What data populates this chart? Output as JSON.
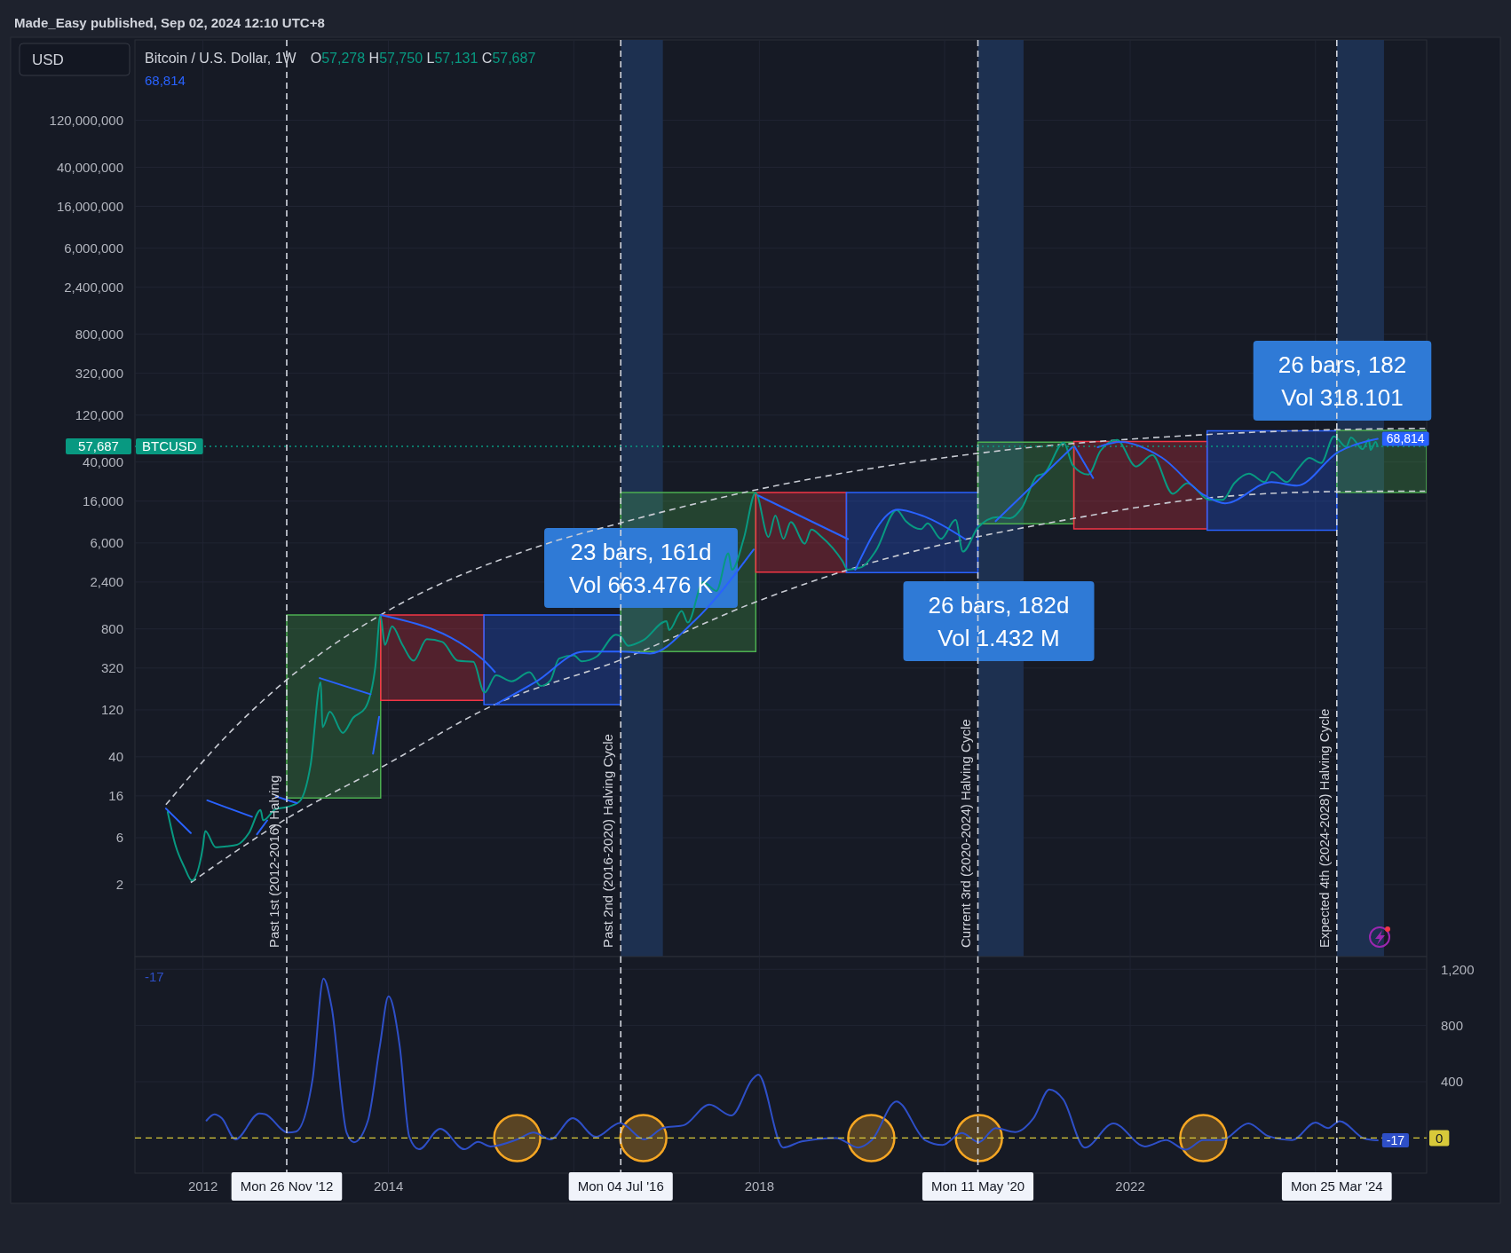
{
  "chart_data": [
    {
      "type": "line",
      "title": "Bitcoin / U.S. Dollar, 1W",
      "subtitle": "O57,278 H57,750 L57,131 C57,687",
      "ylabel": "USD",
      "log": true,
      "grid": true,
      "tick_labels": "y",
      "xlim": [
        "2011-04-08",
        "2025-03-14"
      ],
      "ylim": [
        0.37,
        790000000
      ],
      "xticks": [
        {
          "value": "2012-01-01",
          "label": null
        },
        {
          "value": "2014-01-01",
          "label": null
        },
        {
          "value": "2016-01-01",
          "label": null
        },
        {
          "value": "2018-01-01",
          "label": null
        },
        {
          "value": "2020-01-01",
          "label": null
        },
        {
          "value": "2022-01-01",
          "label": null
        },
        {
          "value": "2024-01-01",
          "label": null
        }
      ],
      "yticks": [
        2,
        6,
        16,
        40,
        120,
        320,
        800,
        {
          "value": 2400,
          "label": "2,400"
        },
        {
          "value": 6000,
          "label": "6,000"
        },
        {
          "value": 16000,
          "label": "16,000"
        },
        {
          "value": 40000,
          "label": "40,000"
        },
        {
          "value": 120000,
          "label": "120,000"
        },
        {
          "value": 320000,
          "label": "320,000"
        },
        {
          "value": 800000,
          "label": "800,000"
        },
        {
          "value": 2400000,
          "label": "2,400,000"
        },
        {
          "value": 6000000,
          "label": "6,000,000"
        },
        {
          "value": 16000000,
          "label": "16,000,000"
        },
        {
          "value": 40000000,
          "label": "40,000,000"
        },
        {
          "value": 120000000,
          "label": "120,000,000"
        }
      ],
      "bands": [
        {
          "axis": "x",
          "from": "2016-07-04",
          "to": "2016-12-17",
          "color": "#1d3050"
        },
        {
          "axis": "x",
          "from": "2020-05-11",
          "to": "2020-11-07",
          "color": "#1d3050"
        },
        {
          "axis": "x",
          "from": "2024-03-25",
          "to": "2024-09-27",
          "color": "#1d3050"
        }
      ],
      "ref_lines": [
        {
          "axis": "x",
          "value": "2012-11-26",
          "label": "Past 1st (2012-2016) Halving",
          "color": "#d1d4dc",
          "line_style": "dashed"
        },
        {
          "axis": "x",
          "value": "2016-07-04",
          "label": "Past 2nd (2016-2020) Halving Cycle",
          "color": "#d1d4dc",
          "line_style": "dashed"
        },
        {
          "axis": "x",
          "value": "2020-05-11",
          "label": "Current 3rd (2020-2024) Halving Cycle",
          "color": "#d1d4dc",
          "line_style": "dashed"
        },
        {
          "axis": "x",
          "value": "2024-03-25",
          "label": "Expected 4th (2024-2028) Halving Cycle",
          "color": "#d1d4dc",
          "line_style": "dashed"
        },
        {
          "axis": "y",
          "value": 57687,
          "label": "57,687",
          "color": "#089981",
          "line_style": "dotted"
        }
      ],
      "series": [
        {
          "color": "#4caf50",
          "x": [
            "2012-11-26",
            "2013-12-01"
          ],
          "values": [
            null,
            null
          ],
          "lower": [
            15.2,
            15.2
          ],
          "upper": [
            1110,
            1110
          ]
        },
        {
          "color": "#f23645",
          "x": [
            "2013-12-01",
            "2015-01-12"
          ],
          "values": [
            null,
            null
          ],
          "lower": [
            150,
            150
          ],
          "upper": [
            1110,
            1110
          ]
        },
        {
          "color": "#2962ff",
          "x": [
            "2015-01-12",
            "2016-07-04"
          ],
          "values": [
            null,
            null
          ],
          "lower": [
            136,
            136
          ],
          "upper": [
            1110,
            1110
          ]
        },
        {
          "color": "#4caf50",
          "x": [
            "2016-07-04",
            "2017-12-18"
          ],
          "values": [
            null,
            null
          ],
          "lower": [
            470,
            470
          ],
          "upper": [
            19600,
            19600
          ]
        },
        {
          "color": "#f23645",
          "x": [
            "2017-12-18",
            "2018-12-10"
          ],
          "values": [
            null,
            null
          ],
          "lower": [
            3020,
            3020
          ],
          "upper": [
            19600,
            19600
          ]
        },
        {
          "color": "#2962ff",
          "x": [
            "2018-12-10",
            "2020-05-11"
          ],
          "values": [
            null,
            null
          ],
          "lower": [
            2990,
            2990
          ],
          "upper": [
            19600,
            19600
          ]
        },
        {
          "color": "#4caf50",
          "x": [
            "2020-05-11",
            "2021-05-24"
          ],
          "values": [
            null,
            null
          ],
          "lower": [
            9400,
            9400
          ],
          "upper": [
            63800,
            63800
          ]
        },
        {
          "color": "#f23645",
          "x": [
            "2021-05-24",
            "2022-10-31"
          ],
          "values": [
            null,
            null
          ],
          "lower": [
            8340,
            8340
          ],
          "upper": [
            64800,
            64800
          ]
        },
        {
          "color": "#2962ff",
          "x": [
            "2022-10-31",
            "2024-03-25"
          ],
          "values": [
            null,
            null
          ],
          "lower": [
            8100,
            8100
          ],
          "upper": [
            83000,
            83000
          ]
        },
        {
          "color": "#4caf50",
          "x": [
            "2024-03-25",
            "2025-03-14"
          ],
          "values": [
            null,
            null
          ],
          "lower": [
            19600,
            19600
          ],
          "upper": [
            84000,
            84000
          ]
        },
        {
          "color": "#c9ccd4",
          "line_style": "dashed",
          "x": [
            "2011-08-08",
            "2012-03-28",
            "2012-11-26",
            "2013-12-01",
            "2015-07-31",
            "2016-07-04",
            "2017-12-10",
            "2020-05-11",
            "2022-10-23",
            "2024-03-28",
            "2025-03-08"
          ],
          "values": [
            13,
            63,
            243,
            1110,
            5380,
            9600,
            20600,
            49000,
            76000,
            85500,
            88000
          ]
        },
        {
          "color": "#c9ccd4",
          "line_style": "dashed",
          "x": [
            "2011-11-14",
            "2012-11-26",
            "2013-12-01",
            "2015-02-24",
            "2016-07-04",
            "2017-12-10",
            "2018-12-16",
            "2021-05-18",
            "2022-10-23",
            "2024-03-28",
            "2025-03-08"
          ],
          "values": [
            2.1,
            9.4,
            31,
            136,
            388,
            1480,
            3200,
            10600,
            17100,
            20000,
            20200
          ]
        },
        {
          "name": "BTCUSD",
          "color": "#089981",
          "x": [
            "2011-08-15",
            "2011-09-15",
            "2011-10-20",
            "2011-11-18",
            "2011-12-31",
            "2012-01-10",
            "2012-02-20",
            "2012-04-01",
            "2012-05-15",
            "2012-06-30",
            "2012-08-15",
            "2012-08-25",
            "2012-10-15",
            "2012-11-26",
            "2013-01-15",
            "2013-02-28",
            "2013-04-09",
            "2013-04-16",
            "2013-05-15",
            "2013-07-05",
            "2013-08-15",
            "2013-10-01",
            "2013-11-10",
            "2013-11-30",
            "2013-12-18",
            "2014-01-15",
            "2014-02-25",
            "2014-04-10",
            "2014-06-01",
            "2014-08-01",
            "2014-10-01",
            "2014-12-01",
            "2015-01-14",
            "2015-03-01",
            "2015-05-01",
            "2015-07-10",
            "2015-08-24",
            "2015-10-01",
            "2015-11-04",
            "2016-01-01",
            "2016-02-01",
            "2016-04-01",
            "2016-06-15",
            "2016-07-04",
            "2016-08-02",
            "2016-10-01",
            "2016-12-31",
            "2017-01-11",
            "2017-03-01",
            "2017-03-25",
            "2017-05-25",
            "2017-07-16",
            "2017-09-01",
            "2017-09-15",
            "2017-11-01",
            "2017-12-17",
            "2018-02-06",
            "2018-03-05",
            "2018-04-06",
            "2018-05-05",
            "2018-06-29",
            "2018-07-25",
            "2018-09-01",
            "2018-11-25",
            "2018-12-15",
            "2019-02-08",
            "2019-04-05",
            "2019-06-26",
            "2019-08-01",
            "2019-09-30",
            "2019-10-26",
            "2019-12-18",
            "2020-02-13",
            "2020-03-13",
            "2020-05-11",
            "2020-07-27",
            "2020-09-15",
            "2020-11-01",
            "2020-12-31",
            "2021-01-27",
            "2021-04-14",
            "2021-05-20",
            "2021-07-20",
            "2021-09-06",
            "2021-11-10",
            "2022-01-24",
            "2022-03-29",
            "2022-06-18",
            "2022-08-14",
            "2022-11-09",
            "2022-12-31",
            "2023-02-16",
            "2023-04-14",
            "2023-06-15",
            "2023-07-13",
            "2023-09-11",
            "2023-10-24",
            "2023-12-08",
            "2024-01-23",
            "2024-03-14",
            "2024-05-01",
            "2024-05-20",
            "2024-07-05",
            "2024-07-29",
            "2024-08-05",
            "2024-08-25",
            "2024-09-02"
          ],
          "values": [
            11,
            5,
            3,
            2.2,
            4.7,
            7,
            4.8,
            4.9,
            5.1,
            6.7,
            11.5,
            9,
            11.8,
            12.3,
            14,
            33,
            230,
            80,
            115,
            70,
            100,
            125,
            330,
            1100,
            550,
            850,
            550,
            380,
            630,
            590,
            380,
            370,
            180,
            270,
            235,
            290,
            210,
            240,
            400,
            430,
            375,
            420,
            700,
            670,
            540,
            615,
            960,
            780,
            1220,
            930,
            2400,
            1950,
            4700,
            3200,
            6700,
            19500,
            6900,
            11400,
            6600,
            9800,
            5900,
            8200,
            7000,
            3900,
            3200,
            3400,
            5000,
            13000,
            10000,
            8300,
            9500,
            6600,
            10300,
            4900,
            8600,
            11000,
            10700,
            13800,
            29000,
            30500,
            63000,
            37000,
            29800,
            52000,
            67000,
            36000,
            47000,
            19000,
            24400,
            16500,
            16500,
            24500,
            30500,
            25000,
            31500,
            25000,
            34000,
            44000,
            39000,
            73000,
            57000,
            71000,
            54000,
            68000,
            53000,
            64000,
            57687
          ]
        },
        {
          "color": "#2962ff",
          "x": [
            "2011-08-08",
            "2011-11-14",
            "2011-12-10",
            "2012-01-18",
            "2012-07-12",
            "2012-07-20",
            "2012-08-01",
            "2012-09-10",
            "2012-09-20",
            "2012-10-15",
            "2013-01-05",
            "2013-01-20",
            "2013-04-05",
            "2013-10-22",
            "2013-10-27",
            "2013-11-01",
            "2013-11-25",
            "2013-11-28",
            "2013-12-01",
            "2015-01-08",
            "2015-02-24",
            "2015-02-25",
            "2015-02-26",
            "2015-08-04",
            "2016-02-10",
            "2016-07-04",
            "2016-10-27",
            "2017-04-20",
            "2017-12-10",
            "2017-12-20",
            "2017-12-28",
            "2018-12-16",
            "2018-12-28",
            "2019-01-14",
            "2019-07-01",
            "2019-10-12",
            "2020-03-22",
            "2020-04-20",
            "2020-07-20",
            "2021-05-18",
            "2021-05-22",
            "2021-05-26",
            "2021-08-08",
            "2021-08-16",
            "2021-08-26",
            "2021-11-25",
            "2022-05-05",
            "2022-10-23",
            "2023-01-10",
            "2023-07-12",
            "2023-10-20",
            "2024-03-28",
            "2024-09-02"
          ],
          "values": [
            11.9,
            6.7,
            null,
            14.4,
            9.8,
            null,
            6.5,
            9,
            null,
            15.8,
            13.5,
            null,
            253,
            173,
            null,
            43,
            102,
            null,
            1110,
            390,
            292,
            null,
            136,
            231,
            470,
            470,
            450,
            966,
            5150,
            null,
            18200,
            6570,
            null,
            3200,
            13100,
            11200,
            6570,
            null,
            9990,
            56600,
            null,
            58000,
            27500,
            null,
            56600,
            64000,
            44500,
            18200,
            15200,
            25000,
            23000,
            50000,
            68814
          ],
          "value_labels": [
            null,
            null,
            null,
            null,
            null,
            null,
            null,
            null,
            null,
            null,
            null,
            null,
            null,
            null,
            null,
            null,
            null,
            null,
            null,
            null,
            null,
            null,
            null,
            null,
            null,
            null,
            null,
            null,
            null,
            null,
            null,
            null,
            null,
            null,
            null,
            null,
            null,
            null,
            null,
            null,
            null,
            null,
            null,
            null,
            null,
            null,
            null,
            null,
            null,
            null,
            null,
            null,
            "68,814"
          ]
        }
      ],
      "annotations": [
        "Made_Easy published, Sep 02, 2024 12:10 UTC+8",
        "68,814",
        "23 bars, 161d\nVol 663.476 K",
        "26 bars, 182d\nVol 1.432 M",
        "26 bars, 182\nVol 318.101"
      ]
    },
    {
      "type": "line",
      "grid": true,
      "xlim": [
        "2011-04-08",
        "2025-03-14"
      ],
      "y2lim": [
        -250,
        1290
      ],
      "xticks": [
        {
          "value": "2012-01-01",
          "label": "2012"
        },
        {
          "value": "2014-01-01",
          "label": "2014"
        },
        {
          "value": "2016-01-01",
          "label": null
        },
        {
          "value": "2018-01-01",
          "label": "2018"
        },
        {
          "value": "2020-01-01",
          "label": null
        },
        {
          "value": "2022-01-01",
          "label": "2022"
        },
        {
          "value": "2024-01-01",
          "label": null
        }
      ],
      "y2ticks": [
        400,
        800,
        {
          "value": 1200,
          "label": "1,200"
        }
      ],
      "ref_lines": [
        {
          "axis": "x",
          "value": "2012-11-26",
          "label": "Mon 26 Nov '12",
          "color": "#d1d4dc",
          "line_style": "dashed"
        },
        {
          "axis": "x",
          "value": "2016-07-04",
          "label": "Mon 04 Jul '16",
          "color": "#d1d4dc",
          "line_style": "dashed"
        },
        {
          "axis": "x",
          "value": "2020-05-11",
          "label": "Mon 11 May '20",
          "color": "#d1d4dc",
          "line_style": "dashed"
        },
        {
          "axis": "x",
          "value": "2024-03-25",
          "label": "Mon 25 Mar '24",
          "color": "#d1d4dc",
          "line_style": "dashed"
        },
        {
          "axis": "y2",
          "value": 0,
          "label": "0",
          "color": "#d8c93a",
          "line_style": "dashed"
        }
      ],
      "series": [
        {
          "axis": "y2",
          "color": "#2e4fc7",
          "x": [
            "2012-01-15",
            "2012-02-15",
            "2012-03-15",
            "2012-05-08",
            "2012-08-10",
            "2012-09-01",
            "2012-12-01",
            "2013-01-01",
            "2013-03-08",
            "2013-04-20",
            "2013-05-22",
            "2013-07-20",
            "2013-08-18",
            "2013-10-12",
            "2013-11-28",
            "2014-01-01",
            "2014-02-14",
            "2014-03-24",
            "2014-05-01",
            "2014-07-24",
            "2014-10-27",
            "2014-12-20",
            "2015-02-07",
            "2015-05-23",
            "2015-07-27",
            "2015-10-01",
            "2015-12-28",
            "2016-03-28",
            "2016-07-01",
            "2016-10-05",
            "2016-12-20",
            "2017-03-08",
            "2017-06-18",
            "2017-09-13",
            "2017-12-06",
            "2017-12-28",
            "2018-04-05",
            "2018-06-17",
            "2018-10-30",
            "2019-01-26",
            "2019-03-20",
            "2019-06-25",
            "2019-10-16",
            "2019-12-24",
            "2020-03-08",
            "2020-05-15",
            "2020-07-20",
            "2020-10-05",
            "2020-12-16",
            "2021-02-17",
            "2021-04-12",
            "2021-07-06",
            "2021-10-27",
            "2022-02-28",
            "2022-05-22",
            "2022-08-07",
            "2022-10-16",
            "2022-12-28",
            "2023-04-12",
            "2023-06-28",
            "2023-10-01",
            "2024-01-01",
            "2024-02-20",
            "2024-04-05",
            "2024-07-12",
            "2024-09-02"
          ],
          "values": [
            124,
            168,
            141,
            -10,
            175,
            170,
            38,
            45,
            420,
            1134,
            930,
            38,
            -30,
            124,
            655,
            1007,
            655,
            8,
            -80,
            66,
            -80,
            -28,
            -60,
            -10,
            38,
            -10,
            141,
            8,
            107,
            -10,
            73,
            90,
            237,
            160,
            420,
            450,
            -68,
            -24,
            0,
            -68,
            -15,
            260,
            -15,
            -50,
            35,
            -30,
            70,
            42,
            140,
            345,
            275,
            -68,
            104,
            -60,
            -15,
            -83,
            -15,
            -15,
            104,
            14,
            -15,
            110,
            70,
            120,
            -4,
            -17
          ],
          "value_labels": [
            null,
            null,
            null,
            null,
            null,
            null,
            null,
            null,
            null,
            null,
            null,
            null,
            null,
            null,
            null,
            null,
            null,
            null,
            null,
            null,
            null,
            null,
            null,
            null,
            null,
            null,
            null,
            null,
            null,
            null,
            null,
            null,
            null,
            null,
            null,
            null,
            null,
            null,
            null,
            null,
            null,
            null,
            null,
            null,
            null,
            null,
            null,
            null,
            null,
            null,
            null,
            null,
            null,
            null,
            null,
            null,
            null,
            null,
            null,
            null,
            null,
            null,
            null,
            null,
            null,
            "-17"
          ]
        },
        {
          "type": "scatter",
          "marker": "circle",
          "axis": "y2",
          "color": "#f5a623",
          "x": [
            "2015-05-23",
            "2016-10-01",
            "2019-03-18",
            "2020-05-15",
            "2022-10-16"
          ],
          "values": [
            0,
            0,
            0,
            0,
            0
          ]
        }
      ],
      "annotations": [
        "-17"
      ]
    }
  ]
}
